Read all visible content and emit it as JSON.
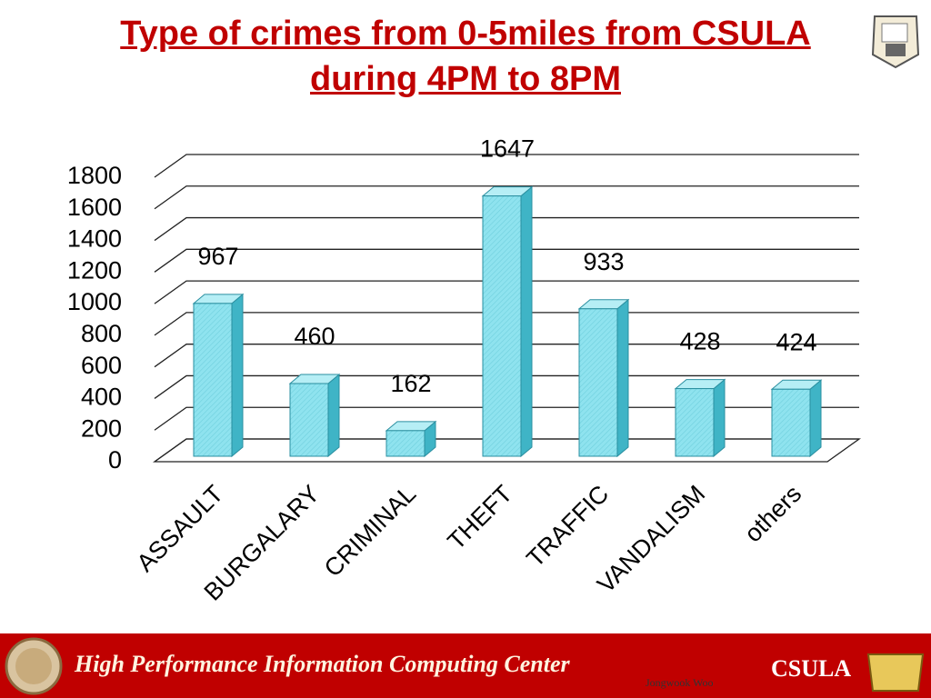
{
  "chart_data": {
    "type": "bar3d",
    "title": "Type of crimes from 0-5miles from CSULA during 4PM to 8PM",
    "categories": [
      "ASSAULT",
      "BURGALARY",
      "CRIMINAL",
      "THEFT",
      "TRAFFIC",
      "VANDALISM",
      "others"
    ],
    "values": [
      967,
      460,
      162,
      1647,
      933,
      428,
      424
    ],
    "color": "#8fe3ef",
    "ylim": [
      0,
      1800
    ],
    "yticks": [
      0,
      200,
      400,
      600,
      800,
      1000,
      1200,
      1400,
      1600,
      1800
    ],
    "grid": true
  },
  "footer": {
    "center": "High Performance Information Computing Center",
    "author": "Jongwook Woo",
    "school": "CSULA"
  }
}
